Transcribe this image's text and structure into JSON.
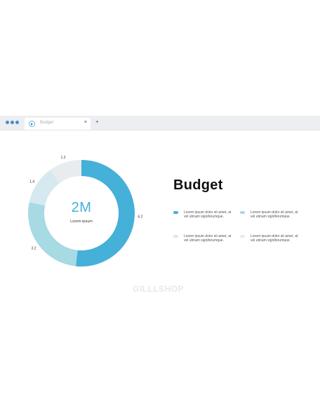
{
  "browser": {
    "tab_title": "Budget",
    "close_symbol": "×",
    "new_tab_symbol": "+"
  },
  "slide": {
    "title": "Budget",
    "center_value": "2M",
    "center_label": "Lorem ipsum",
    "watermark": "GILLLSHOP"
  },
  "colors": {
    "accent": "#45b0d8",
    "slice_2": "#a7dae3",
    "slice_3": "#d6e8f0",
    "slice_4": "#e9ecef"
  },
  "legend": [
    {
      "text": "Lorem ipsum dolor sit amet, at vel utinam signiferumque.",
      "color": "#45b0d8"
    },
    {
      "text": "Lorem ipsum dolor sit amet, at vel utinam signiferumque.",
      "color": "#a7dae3"
    },
    {
      "text": "Lorem ipsum dolor sit amet, at vel utinam signiferumque.",
      "color": "#d6e8f0"
    },
    {
      "text": "Lorem ipsum dolor sit amet, at vel utinam signiferumque.",
      "color": "#e9ecef"
    }
  ],
  "chart_data": {
    "type": "pie",
    "categories": [
      "",
      "",
      "",
      ""
    ],
    "values": [
      6.2,
      3.2,
      1.4,
      1.2
    ],
    "value_labels": [
      "6.2",
      "3.2",
      "1.4",
      "1.2"
    ],
    "colors": [
      "#45b0d8",
      "#a7dae3",
      "#d6e8f0",
      "#e9ecef"
    ],
    "donut": true,
    "title": ""
  }
}
